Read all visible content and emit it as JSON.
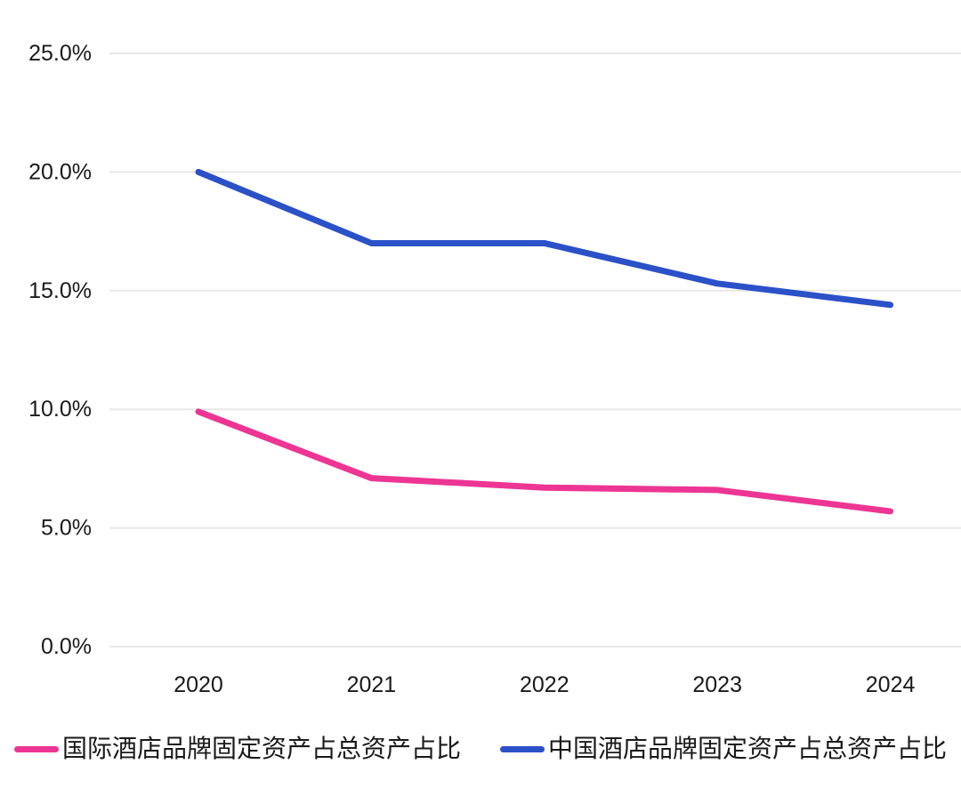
{
  "chart_data": {
    "type": "line",
    "categories": [
      "2020",
      "2021",
      "2022",
      "2023",
      "2024"
    ],
    "series": [
      {
        "name": "国际酒店品牌固定资产占总资产占比",
        "color": "#ED3594",
        "values": [
          9.9,
          7.1,
          6.7,
          6.6,
          5.7
        ]
      },
      {
        "name": "中国酒店品牌固定资产占总资产占比",
        "color": "#2B51C8",
        "values": [
          20.0,
          17.0,
          17.0,
          15.3,
          14.4
        ]
      }
    ],
    "title": "",
    "xlabel": "",
    "ylabel": "",
    "ylim": [
      0,
      25
    ],
    "yticks": [
      0,
      5,
      10,
      15,
      20,
      25
    ],
    "ytick_suffix": "%",
    "ytick_decimals": 1,
    "grid": "horizontal",
    "legend_position": "bottom"
  },
  "legend": {
    "items": [
      {
        "label": "国际酒店品牌固定资产占总资产占比",
        "color": "#ED3594"
      },
      {
        "label": "中国酒店品牌固定资产占总资产占比",
        "color": "#2B51C8"
      }
    ]
  },
  "colors": {
    "background": "#FFFFFF",
    "grid": "#E8E8E8",
    "text": "#1A1A1A",
    "pink": "#ED3594",
    "blue": "#2B51C8"
  }
}
